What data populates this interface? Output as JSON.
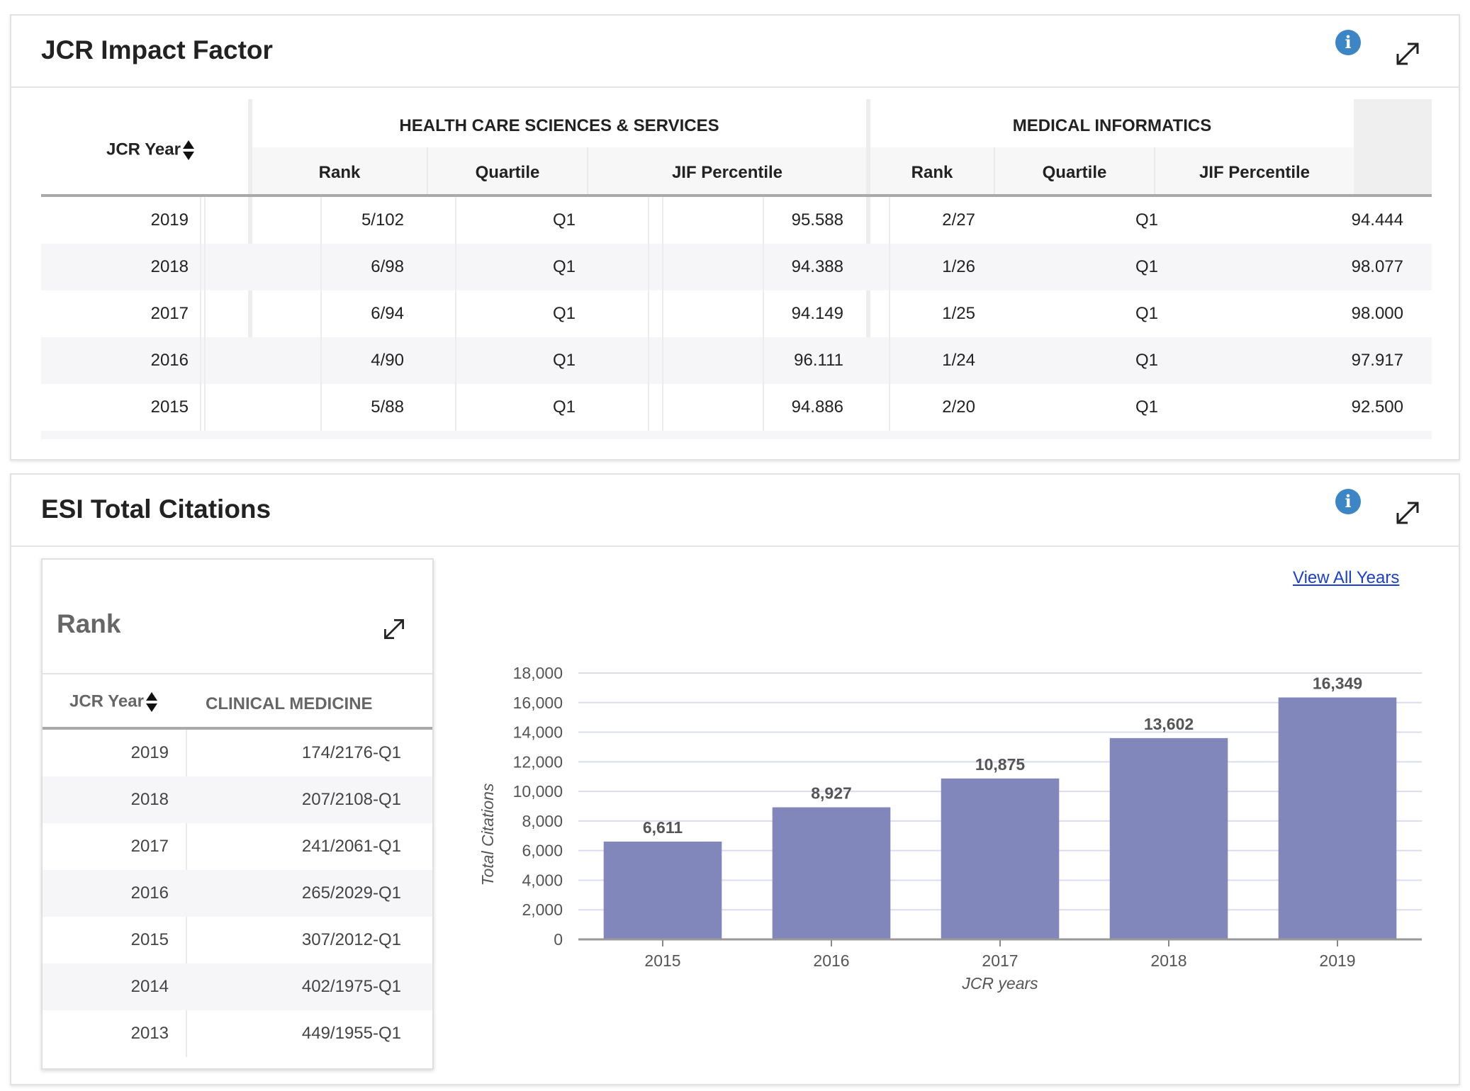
{
  "jcr": {
    "title": "JCR Impact Factor",
    "year_header": "JCR Year",
    "groups": [
      "HEALTH CARE SCIENCES & SERVICES",
      "MEDICAL INFORMATICS"
    ],
    "sub_headers": [
      "Rank",
      "Quartile",
      "JIF Percentile"
    ],
    "rows": [
      {
        "year": "2019",
        "c1": [
          "5/102",
          "Q1",
          "95.588"
        ],
        "c2": [
          "2/27",
          "Q1",
          "94.444"
        ]
      },
      {
        "year": "2018",
        "c1": [
          "6/98",
          "Q1",
          "94.388"
        ],
        "c2": [
          "1/26",
          "Q1",
          "98.077"
        ]
      },
      {
        "year": "2017",
        "c1": [
          "6/94",
          "Q1",
          "94.149"
        ],
        "c2": [
          "1/25",
          "Q1",
          "98.000"
        ]
      },
      {
        "year": "2016",
        "c1": [
          "4/90",
          "Q1",
          "96.111"
        ],
        "c2": [
          "1/24",
          "Q1",
          "97.917"
        ]
      },
      {
        "year": "2015",
        "c1": [
          "5/88",
          "Q1",
          "94.886"
        ],
        "c2": [
          "2/20",
          "Q1",
          "92.500"
        ]
      }
    ]
  },
  "esi": {
    "title": "ESI Total Citations",
    "view_all": "View All Years",
    "rank_panel": {
      "title": "Rank",
      "year_header": "JCR Year",
      "field_header": "CLINICAL MEDICINE",
      "rows": [
        {
          "year": "2019",
          "value": "174/2176-Q1"
        },
        {
          "year": "2018",
          "value": "207/2108-Q1"
        },
        {
          "year": "2017",
          "value": "241/2061-Q1"
        },
        {
          "year": "2016",
          "value": "265/2029-Q1"
        },
        {
          "year": "2015",
          "value": "307/2012-Q1"
        },
        {
          "year": "2014",
          "value": "402/1975-Q1"
        },
        {
          "year": "2013",
          "value": "449/1955-Q1"
        }
      ]
    }
  },
  "icons": {
    "info": "info-icon",
    "expand": "expand-icon",
    "sort": "sort-arrows-icon"
  },
  "colors": {
    "bar": "#8287bb",
    "info": "#3d86c6",
    "link": "#1a3fd1"
  },
  "chart_data": {
    "type": "bar",
    "categories": [
      "2015",
      "2016",
      "2017",
      "2018",
      "2019"
    ],
    "values": [
      6611,
      8927,
      10875,
      13602,
      16349
    ],
    "value_labels": [
      "6,611",
      "8,927",
      "10,875",
      "13,602",
      "16,349"
    ],
    "ylim": [
      0,
      18000
    ],
    "yticks": [
      "0",
      "2,000",
      "4,000",
      "6,000",
      "8,000",
      "10,000",
      "12,000",
      "14,000",
      "16,000",
      "18,000"
    ],
    "xlabel": "JCR years",
    "ylabel": "Total Citations",
    "grid": true
  }
}
